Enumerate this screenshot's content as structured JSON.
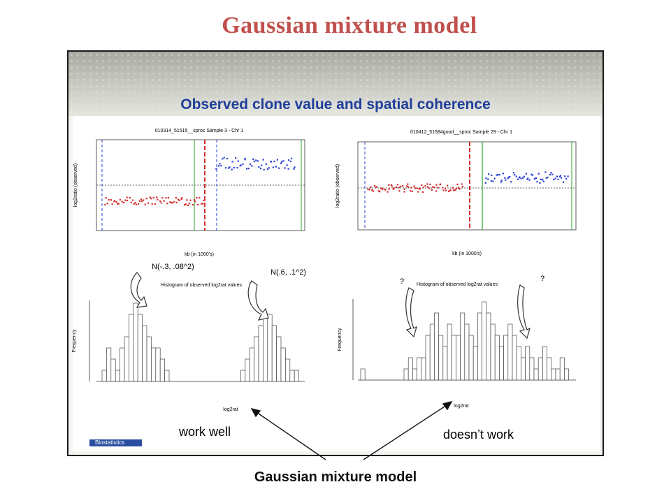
{
  "slide_title": "Gaussian mixture model",
  "subtitle": "Observed clone value and spatial coherence",
  "left_panel": {
    "scatter_title": "010314_51515__sproc Sample 3 - Chr 1",
    "x_axis_label": "kb (in 1000's)",
    "y_axis_label": "log2ratio (observed)",
    "hist_title": "Histogram of observed log2rat values",
    "hist_xlabel": "log2rat",
    "hist_ylabel": "Frequency",
    "annot_left": "N(-.3, .08^2)",
    "annot_right": "N(.6, .1^2)",
    "verdict": "work well"
  },
  "right_panel": {
    "scatter_title": "010412_51584good__sproc Sample 29 - Chr 1",
    "x_axis_label": "kb (in 1000's)",
    "y_axis_label": "log2ratio (observed)",
    "hist_title": "Histogram of observed log2rat values",
    "hist_xlabel": "log2rat",
    "hist_ylabel": "Frequency",
    "annot_left": "?",
    "annot_right": "?",
    "verdict": "doesn’t work"
  },
  "logo_text": "Biostatistics",
  "bottom_title": "Gaussian mixture model",
  "colors": {
    "title": "#c0504d",
    "subtitle": "#1f3f9a",
    "red_points": "#d42a2a",
    "blue_points": "#2a3fd4"
  }
}
